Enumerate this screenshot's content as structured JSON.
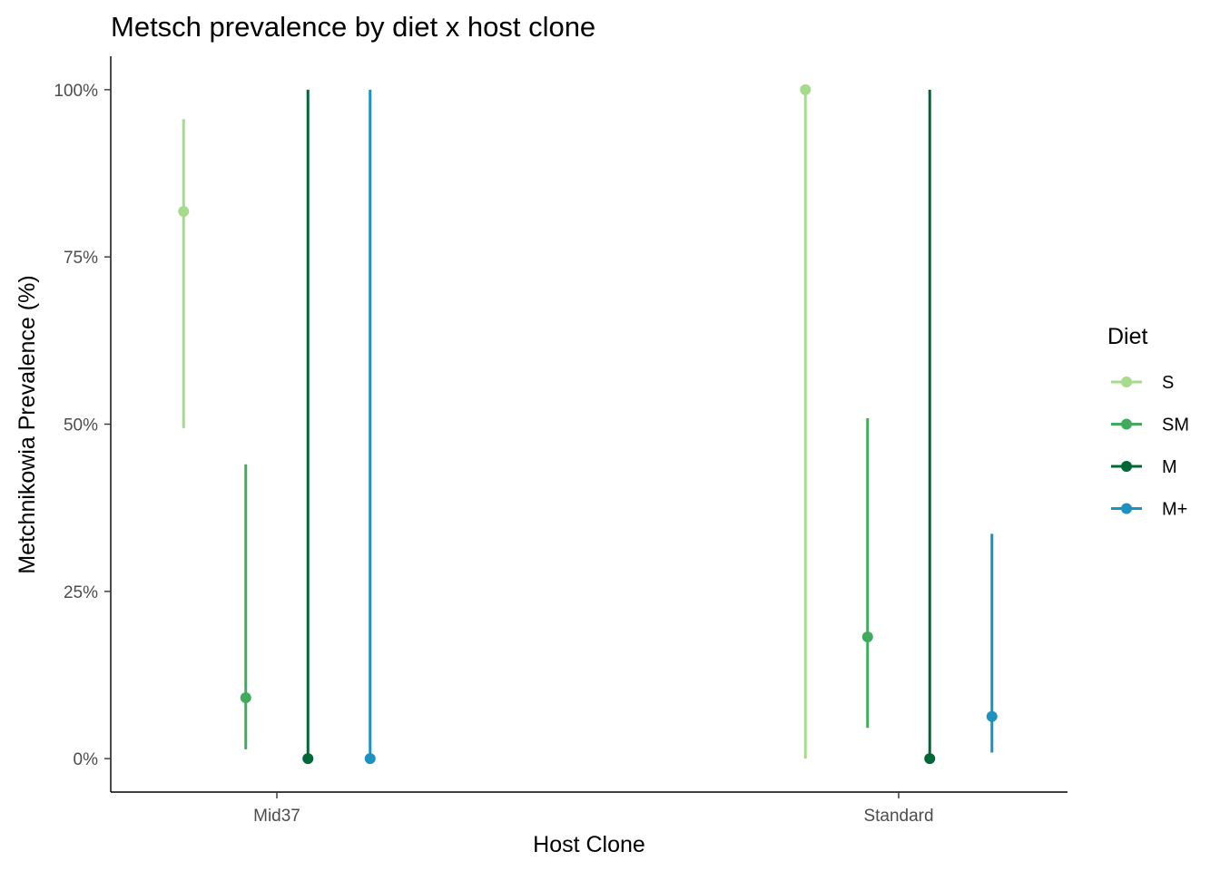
{
  "chart_data": {
    "type": "scatter",
    "title": "Metsch prevalence by diet x host clone",
    "xlabel": "Host Clone",
    "ylabel": "Metchnikowia Prevalence (%)",
    "categories": [
      "Mid37",
      "Standard"
    ],
    "ylim": [
      -5,
      105
    ],
    "yticks": [
      0,
      25,
      50,
      75,
      100
    ],
    "ytick_labels": [
      "0%",
      "25%",
      "50%",
      "75%",
      "100%"
    ],
    "grid": false,
    "legend": {
      "title": "Diet",
      "placement": "right"
    },
    "series": [
      {
        "name": "S",
        "color": "#a6db8c",
        "points": [
          {
            "category": "Mid37",
            "value": 81.8,
            "lower": 49.4,
            "upper": 95.6
          },
          {
            "category": "Standard",
            "value": 100,
            "lower": 0,
            "upper": 100
          }
        ]
      },
      {
        "name": "SM",
        "color": "#41ab5d",
        "points": [
          {
            "category": "Mid37",
            "value": 9.1,
            "lower": 1.4,
            "upper": 44.0
          },
          {
            "category": "Standard",
            "value": 18.2,
            "lower": 4.6,
            "upper": 50.9
          }
        ]
      },
      {
        "name": "M",
        "color": "#006837",
        "points": [
          {
            "category": "Mid37",
            "value": 0,
            "lower": 0,
            "upper": 100
          },
          {
            "category": "Standard",
            "value": 0,
            "lower": 0,
            "upper": 100
          }
        ]
      },
      {
        "name": "M+",
        "color": "#1d91c0",
        "points": [
          {
            "category": "Mid37",
            "value": 0,
            "lower": 0,
            "upper": 100
          },
          {
            "category": "Standard",
            "value": 6.3,
            "lower": 0.9,
            "upper": 33.6
          }
        ]
      }
    ]
  }
}
